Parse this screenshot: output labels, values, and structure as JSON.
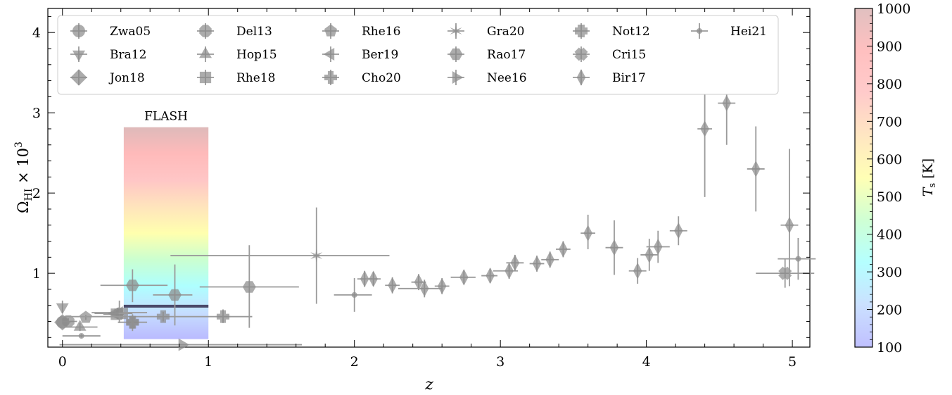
{
  "chart_data": {
    "type": "scatter",
    "title": "",
    "xlabel": "z",
    "ylabel_main": "Ω",
    "ylabel_sub": "HI",
    "ylabel_tail": " × 10",
    "ylabel_exp": "3",
    "xlim": [
      -0.1,
      5.12
    ],
    "ylim": [
      0.08,
      4.3
    ],
    "x_ticks": [
      0,
      1,
      2,
      3,
      4,
      5
    ],
    "x_tick_labels": [
      "0",
      "1",
      "2",
      "3",
      "4",
      "5"
    ],
    "y_ticks": [
      1,
      2,
      3,
      4
    ],
    "y_tick_labels": [
      "1",
      "2",
      "3",
      "4"
    ],
    "grid": false,
    "legend_position": "top",
    "legend": [
      {
        "label": "Zwa05",
        "marker": "circle"
      },
      {
        "label": "Bra12",
        "marker": "triangle-down"
      },
      {
        "label": "Jon18",
        "marker": "diamond"
      },
      {
        "label": "Del13",
        "marker": "octagon"
      },
      {
        "label": "Hop15",
        "marker": "triangle-up"
      },
      {
        "label": "Rhe18",
        "marker": "square"
      },
      {
        "label": "Rhe16",
        "marker": "pentagon"
      },
      {
        "label": "Ber19",
        "marker": "triangle-left"
      },
      {
        "label": "Cho20",
        "marker": "plus"
      },
      {
        "label": "Gra20",
        "marker": "star"
      },
      {
        "label": "Rao17",
        "marker": "hexagon"
      },
      {
        "label": "Nee16",
        "marker": "triangle-right"
      },
      {
        "label": "Not12",
        "marker": "plus-filled"
      },
      {
        "label": "Cri15",
        "marker": "x-filled"
      },
      {
        "label": "Bir17",
        "marker": "thin-diamond"
      },
      {
        "label": "Hei21",
        "marker": "point"
      }
    ],
    "series": [
      {
        "label": "Zwa05",
        "points": [
          {
            "x": 0.0,
            "y": 0.39,
            "xlo": 0.0,
            "xhi": 0.0,
            "ylo": 0.39,
            "yhi": 0.39
          }
        ]
      },
      {
        "label": "Bra12",
        "points": [
          {
            "x": 0.0,
            "y": 0.58,
            "xlo": 0.0,
            "xhi": 0.0,
            "ylo": 0.5,
            "yhi": 0.66
          }
        ]
      },
      {
        "label": "Jon18",
        "points": [
          {
            "x": 0.0,
            "y": 0.39,
            "xlo": 0.0,
            "xhi": 0.0,
            "ylo": 0.39,
            "yhi": 0.39
          }
        ]
      },
      {
        "label": "Del13",
        "points": [
          {
            "x": 0.04,
            "y": 0.4,
            "xlo": 0.0,
            "xhi": 0.1,
            "ylo": 0.36,
            "yhi": 0.44
          }
        ]
      },
      {
        "label": "Hop15",
        "points": [
          {
            "x": 0.12,
            "y": 0.33,
            "xlo": 0.0,
            "xhi": 0.24,
            "ylo": 0.28,
            "yhi": 0.38
          }
        ]
      },
      {
        "label": "Rhe18",
        "points": [
          {
            "x": 0.37,
            "y": 0.49,
            "xlo": 0.28,
            "xhi": 0.42,
            "ylo": 0.44,
            "yhi": 0.54
          },
          {
            "x": 0.41,
            "y": 0.5,
            "xlo": 0.35,
            "xhi": 0.47,
            "ylo": 0.45,
            "yhi": 0.55
          }
        ]
      },
      {
        "label": "Rhe16",
        "points": [
          {
            "x": 0.16,
            "y": 0.45,
            "xlo": 0.16,
            "xhi": 0.16,
            "ylo": 0.42,
            "yhi": 0.48
          }
        ]
      },
      {
        "label": "Ber19",
        "points": [
          {
            "x": 0.39,
            "y": 0.51,
            "xlo": 0.2,
            "xhi": 0.58,
            "ylo": 0.38,
            "yhi": 0.66
          },
          {
            "x": 0.36,
            "y": 0.5,
            "xlo": 0.22,
            "xhi": 0.48,
            "ylo": 0.44,
            "yhi": 0.56
          }
        ]
      },
      {
        "label": "Cho20",
        "points": [
          {
            "x": 0.48,
            "y": 0.39,
            "xlo": 0.38,
            "xhi": 0.58,
            "ylo": 0.3,
            "yhi": 0.48
          },
          {
            "x": 0.69,
            "y": 0.46,
            "xlo": 0.0,
            "xhi": 1.3,
            "ylo": 0.4,
            "yhi": 0.52
          },
          {
            "x": 1.1,
            "y": 0.46,
            "xlo": 1.05,
            "xhi": 1.15,
            "ylo": 0.38,
            "yhi": 0.55
          }
        ]
      },
      {
        "label": "Gra20",
        "points": [
          {
            "x": 1.74,
            "y": 1.22,
            "xlo": 0.74,
            "xhi": 2.24,
            "ylo": 0.62,
            "yhi": 1.82
          }
        ]
      },
      {
        "label": "Rao17",
        "points": [
          {
            "x": 0.77,
            "y": 0.73,
            "xlo": 0.62,
            "xhi": 0.89,
            "ylo": 0.35,
            "yhi": 1.11
          },
          {
            "x": 1.28,
            "y": 0.83,
            "xlo": 0.94,
            "xhi": 1.62,
            "ylo": 0.32,
            "yhi": 1.35
          },
          {
            "x": 0.48,
            "y": 0.85,
            "xlo": 0.26,
            "xhi": 0.72,
            "ylo": 0.64,
            "yhi": 1.05
          }
        ]
      },
      {
        "label": "Nee16",
        "points": [
          {
            "x": 0.82,
            "y": 0.11,
            "xlo": -0.02,
            "xhi": 1.64,
            "ylo": 0.11,
            "yhi": 0.11
          }
        ]
      },
      {
        "label": "Not12",
        "points": [
          {
            "x": 0.48,
            "y": 0.39,
            "xlo": 0.47,
            "xhi": 0.49,
            "ylo": 0.28,
            "yhi": 0.49
          }
        ]
      },
      {
        "label": "Cri15",
        "points": [
          {
            "x": 4.95,
            "y": 1.0,
            "xlo": 4.75,
            "xhi": 5.15,
            "ylo": 0.82,
            "yhi": 1.18
          }
        ]
      },
      {
        "label": "Bir17",
        "points": [
          {
            "x": 2.07,
            "y": 0.93,
            "xlo": 2.02,
            "xhi": 2.12,
            "ylo": 0.83,
            "yhi": 1.03
          },
          {
            "x": 2.13,
            "y": 0.93,
            "xlo": 2.08,
            "xhi": 2.18,
            "ylo": 0.84,
            "yhi": 1.02
          },
          {
            "x": 2.26,
            "y": 0.85,
            "xlo": 2.21,
            "xhi": 2.31,
            "ylo": 0.75,
            "yhi": 0.95
          },
          {
            "x": 2.44,
            "y": 0.89,
            "xlo": 2.39,
            "xhi": 2.49,
            "ylo": 0.79,
            "yhi": 0.99
          },
          {
            "x": 2.48,
            "y": 0.81,
            "xlo": 2.3,
            "xhi": 2.6,
            "ylo": 0.7,
            "yhi": 0.92
          },
          {
            "x": 2.6,
            "y": 0.84,
            "xlo": 2.55,
            "xhi": 2.65,
            "ylo": 0.74,
            "yhi": 0.94
          },
          {
            "x": 2.75,
            "y": 0.95,
            "xlo": 2.66,
            "xhi": 2.83,
            "ylo": 0.86,
            "yhi": 1.04
          },
          {
            "x": 2.93,
            "y": 0.97,
            "xlo": 2.87,
            "xhi": 2.98,
            "ylo": 0.88,
            "yhi": 1.06
          },
          {
            "x": 3.06,
            "y": 1.03,
            "xlo": 2.95,
            "xhi": 3.12,
            "ylo": 0.93,
            "yhi": 1.13
          },
          {
            "x": 3.1,
            "y": 1.13,
            "xlo": 3.04,
            "xhi": 3.16,
            "ylo": 1.03,
            "yhi": 1.23
          },
          {
            "x": 3.25,
            "y": 1.12,
            "xlo": 3.2,
            "xhi": 3.3,
            "ylo": 1.02,
            "yhi": 1.22
          },
          {
            "x": 3.34,
            "y": 1.17,
            "xlo": 3.28,
            "xhi": 3.4,
            "ylo": 1.07,
            "yhi": 1.27
          },
          {
            "x": 3.43,
            "y": 1.3,
            "xlo": 3.38,
            "xhi": 3.48,
            "ylo": 1.2,
            "yhi": 1.4
          },
          {
            "x": 3.6,
            "y": 1.5,
            "xlo": 3.55,
            "xhi": 3.65,
            "ylo": 1.3,
            "yhi": 1.73
          },
          {
            "x": 3.78,
            "y": 1.32,
            "xlo": 3.72,
            "xhi": 3.84,
            "ylo": 0.98,
            "yhi": 1.66
          },
          {
            "x": 3.94,
            "y": 1.03,
            "xlo": 3.88,
            "xhi": 4.0,
            "ylo": 0.87,
            "yhi": 1.19
          },
          {
            "x": 4.02,
            "y": 1.23,
            "xlo": 3.96,
            "xhi": 4.08,
            "ylo": 1.03,
            "yhi": 1.43
          },
          {
            "x": 4.08,
            "y": 1.33,
            "xlo": 4.0,
            "xhi": 4.16,
            "ylo": 1.13,
            "yhi": 1.53
          },
          {
            "x": 4.22,
            "y": 1.53,
            "xlo": 4.16,
            "xhi": 4.28,
            "ylo": 1.35,
            "yhi": 1.71
          },
          {
            "x": 4.4,
            "y": 2.8,
            "xlo": 4.35,
            "xhi": 4.45,
            "ylo": 1.95,
            "yhi": 3.65
          },
          {
            "x": 4.55,
            "y": 3.12,
            "xlo": 4.49,
            "xhi": 4.61,
            "ylo": 2.6,
            "yhi": 3.64
          },
          {
            "x": 4.75,
            "y": 2.3,
            "xlo": 4.69,
            "xhi": 4.81,
            "ylo": 1.77,
            "yhi": 2.83
          },
          {
            "x": 4.98,
            "y": 1.6,
            "xlo": 4.92,
            "xhi": 5.04,
            "ylo": 0.84,
            "yhi": 2.55
          }
        ]
      },
      {
        "label": "Hei21",
        "points": [
          {
            "x": 0.13,
            "y": 0.22,
            "xlo": 0.0,
            "xhi": 0.26,
            "ylo": 0.2,
            "yhi": 0.24
          },
          {
            "x": 2.0,
            "y": 0.73,
            "xlo": 1.86,
            "xhi": 2.12,
            "ylo": 0.52,
            "yhi": 0.94
          },
          {
            "x": 5.04,
            "y": 1.18,
            "xlo": 4.9,
            "xhi": 5.16,
            "ylo": 0.92,
            "yhi": 1.44
          }
        ]
      }
    ],
    "flash_region": {
      "label": "FLASH",
      "x_range": [
        0.42,
        1.0
      ],
      "y_range": [
        0.18,
        2.82
      ],
      "line_y": 0.59
    },
    "colorbar": {
      "label_main": "T",
      "label_sub": "s",
      "label_unit": " [K]",
      "range": [
        100,
        1000
      ],
      "ticks": [
        100,
        200,
        300,
        400,
        500,
        600,
        700,
        800,
        900,
        1000
      ],
      "tick_labels": [
        "100",
        "200",
        "300",
        "400",
        "500",
        "600",
        "700",
        "800",
        "900",
        "1000"
      ],
      "colormap_stops": [
        "#8c8cff",
        "#a0c8ff",
        "#78ffff",
        "#a8ffb0",
        "#ffff78",
        "#ffd290",
        "#ffa0a0",
        "#ff8c8c",
        "#c88c8c"
      ]
    }
  }
}
